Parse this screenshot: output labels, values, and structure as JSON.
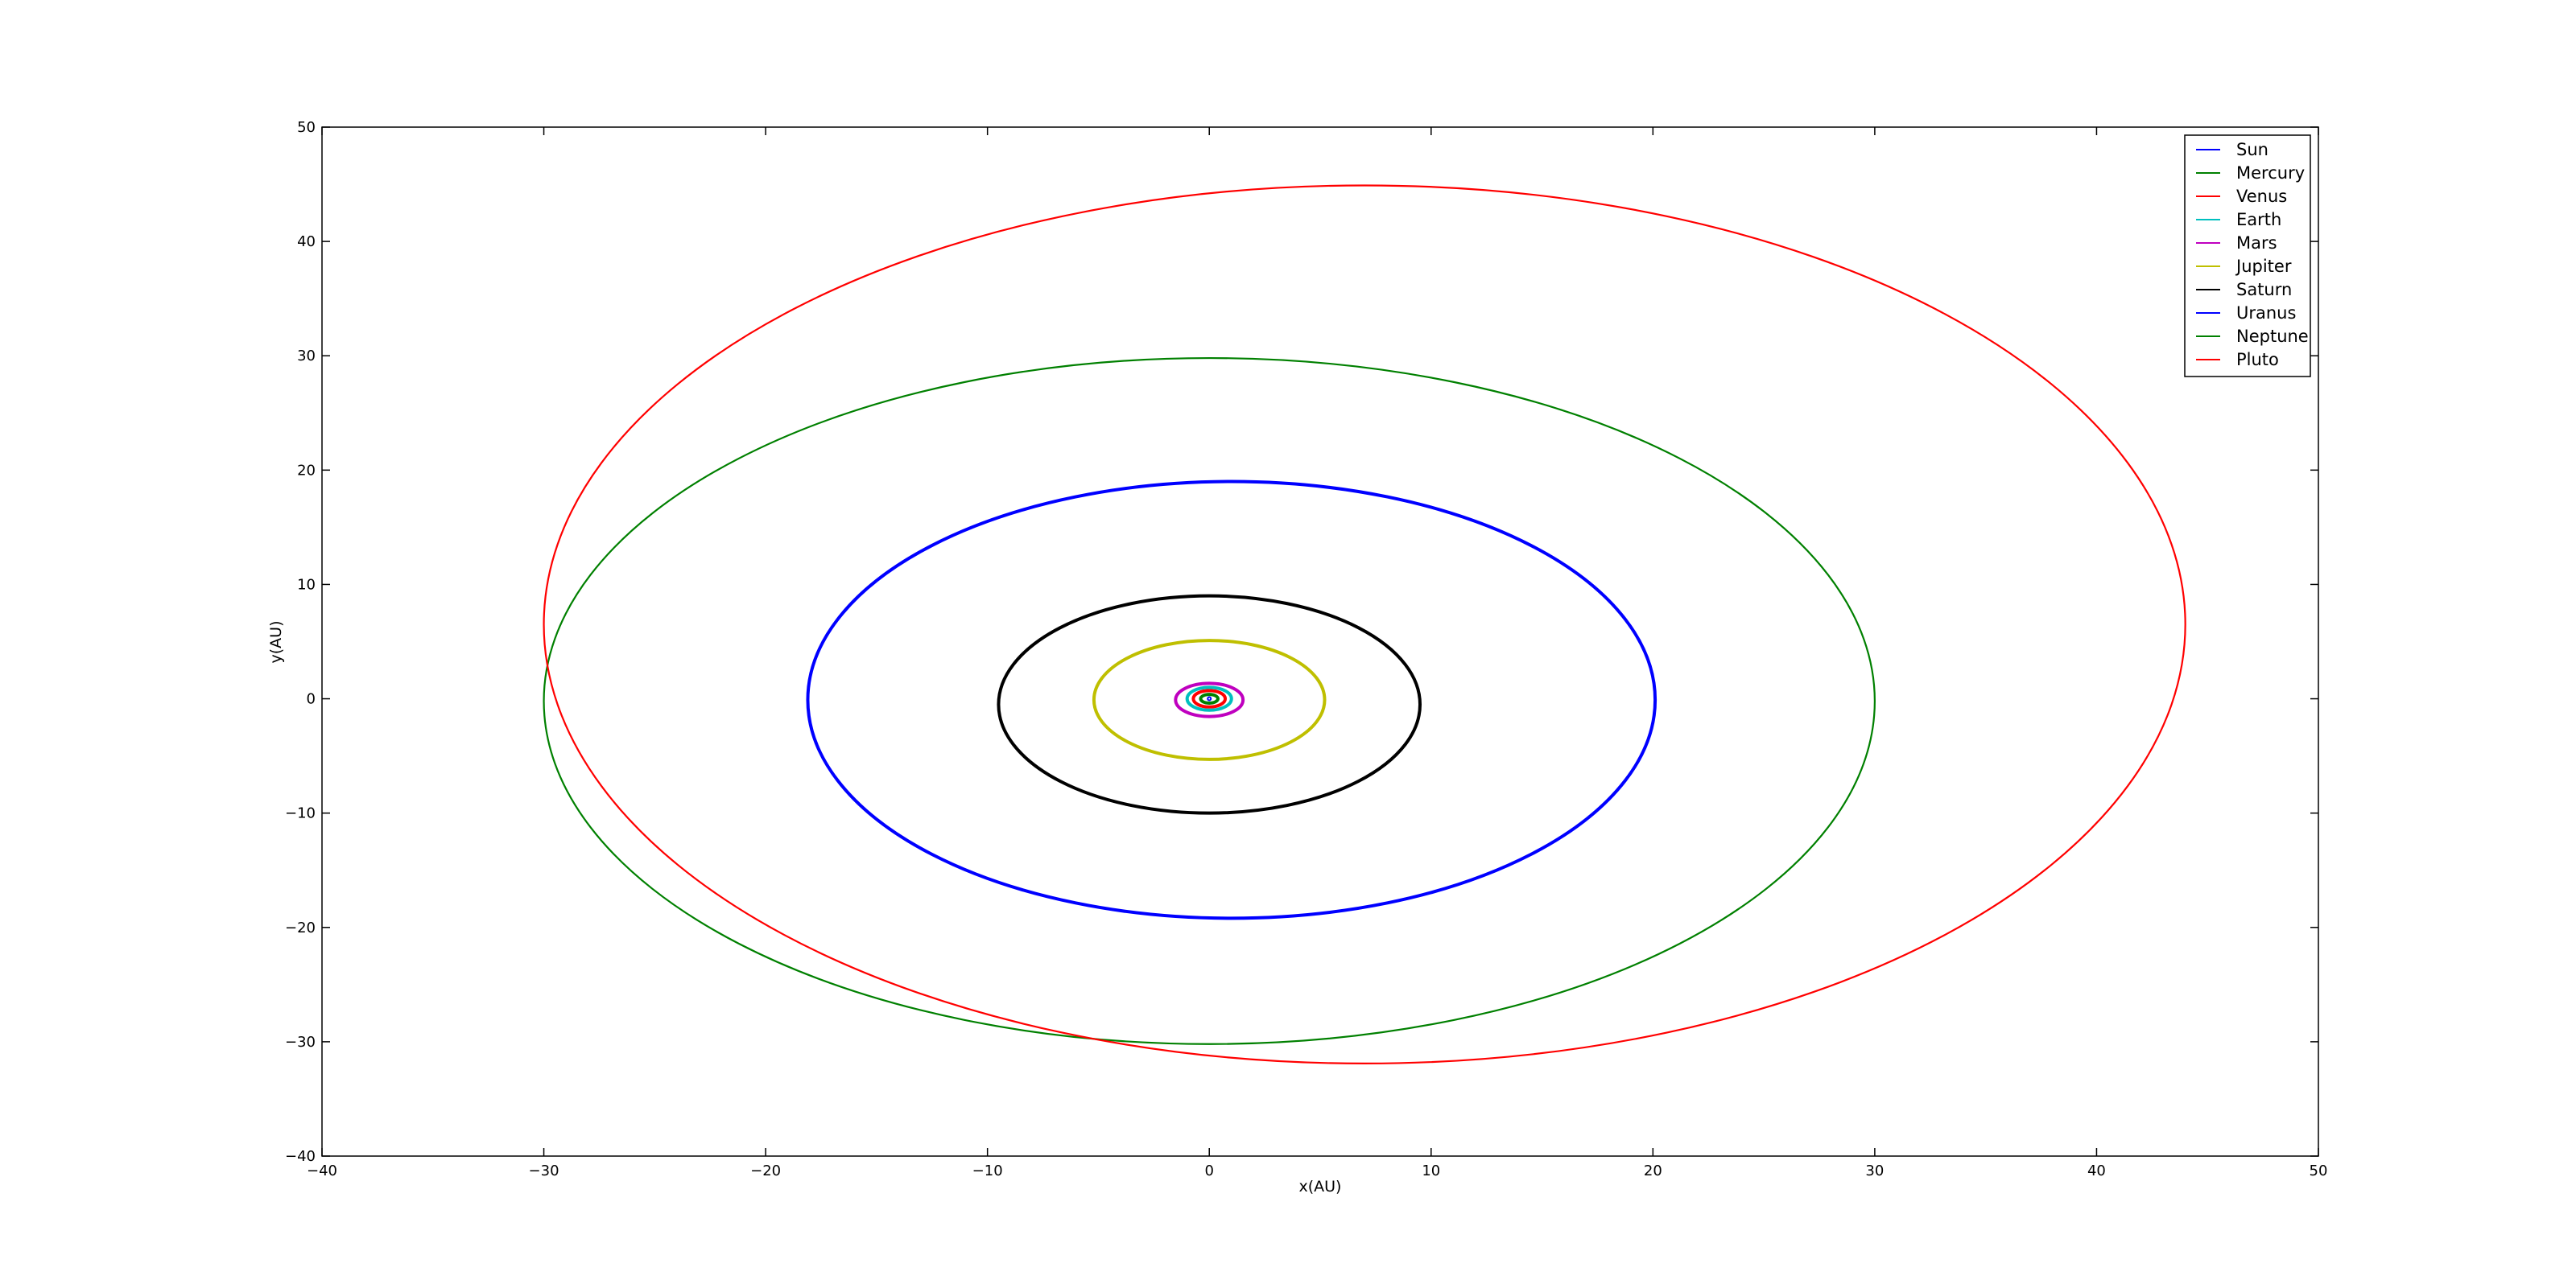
{
  "chart_data": {
    "type": "line",
    "title": "",
    "xlabel": "x(AU)",
    "ylabel": "y(AU)",
    "xlim": [
      -40,
      50
    ],
    "ylim": [
      -40,
      50
    ],
    "xticks": [
      -40,
      -30,
      -20,
      -10,
      0,
      10,
      20,
      30,
      40,
      50
    ],
    "yticks": [
      -40,
      -30,
      -20,
      -10,
      0,
      10,
      20,
      30,
      40,
      50
    ],
    "xtick_labels": [
      "−40",
      "−30",
      "−20",
      "−10",
      "0",
      "10",
      "20",
      "30",
      "40",
      "50"
    ],
    "ytick_labels": [
      "−40",
      "−30",
      "−20",
      "−10",
      "0",
      "10",
      "20",
      "30",
      "40",
      "50"
    ],
    "grid": false,
    "legend_position": "top-right",
    "series": [
      {
        "name": "Sun",
        "color": "#0000ff",
        "orbit": {
          "cx": 0.0,
          "cy": 0.0,
          "rx": 0.01,
          "ry": 0.01
        }
      },
      {
        "name": "Mercury",
        "color": "#008000",
        "orbit": {
          "cx": 0.0,
          "cy": 0.0,
          "rx": 0.39,
          "ry": 0.38
        }
      },
      {
        "name": "Venus",
        "color": "#ff0000",
        "orbit": {
          "cx": 0.0,
          "cy": 0.0,
          "rx": 0.72,
          "ry": 0.72
        }
      },
      {
        "name": "Earth",
        "color": "#00bfbf",
        "orbit": {
          "cx": 0.0,
          "cy": 0.0,
          "rx": 1.0,
          "ry": 1.0
        }
      },
      {
        "name": "Mars",
        "color": "#bf00bf",
        "orbit": {
          "cx": 0.0,
          "cy": -0.1,
          "rx": 1.52,
          "ry": 1.45
        }
      },
      {
        "name": "Jupiter",
        "color": "#bfbf00",
        "orbit": {
          "cx": 0.0,
          "cy": -0.1,
          "rx": 5.2,
          "ry": 5.2
        }
      },
      {
        "name": "Saturn",
        "color": "#000000",
        "orbit": {
          "cx": 0.0,
          "cy": -0.5,
          "rx": 9.5,
          "ry": 9.5
        }
      },
      {
        "name": "Uranus",
        "color": "#0000ff",
        "orbit": {
          "cx": 1.0,
          "cy": -0.1,
          "rx": 19.1,
          "ry": 19.1
        }
      },
      {
        "name": "Neptune",
        "color": "#008000",
        "orbit": {
          "cx": 0.0,
          "cy": -0.2,
          "rx": 30.0,
          "ry": 30.0
        }
      },
      {
        "name": "Pluto",
        "color": "#ff0000",
        "orbit": {
          "cx": 7.0,
          "cy": 6.5,
          "rx": 37.0,
          "ry": 38.4
        }
      }
    ]
  }
}
